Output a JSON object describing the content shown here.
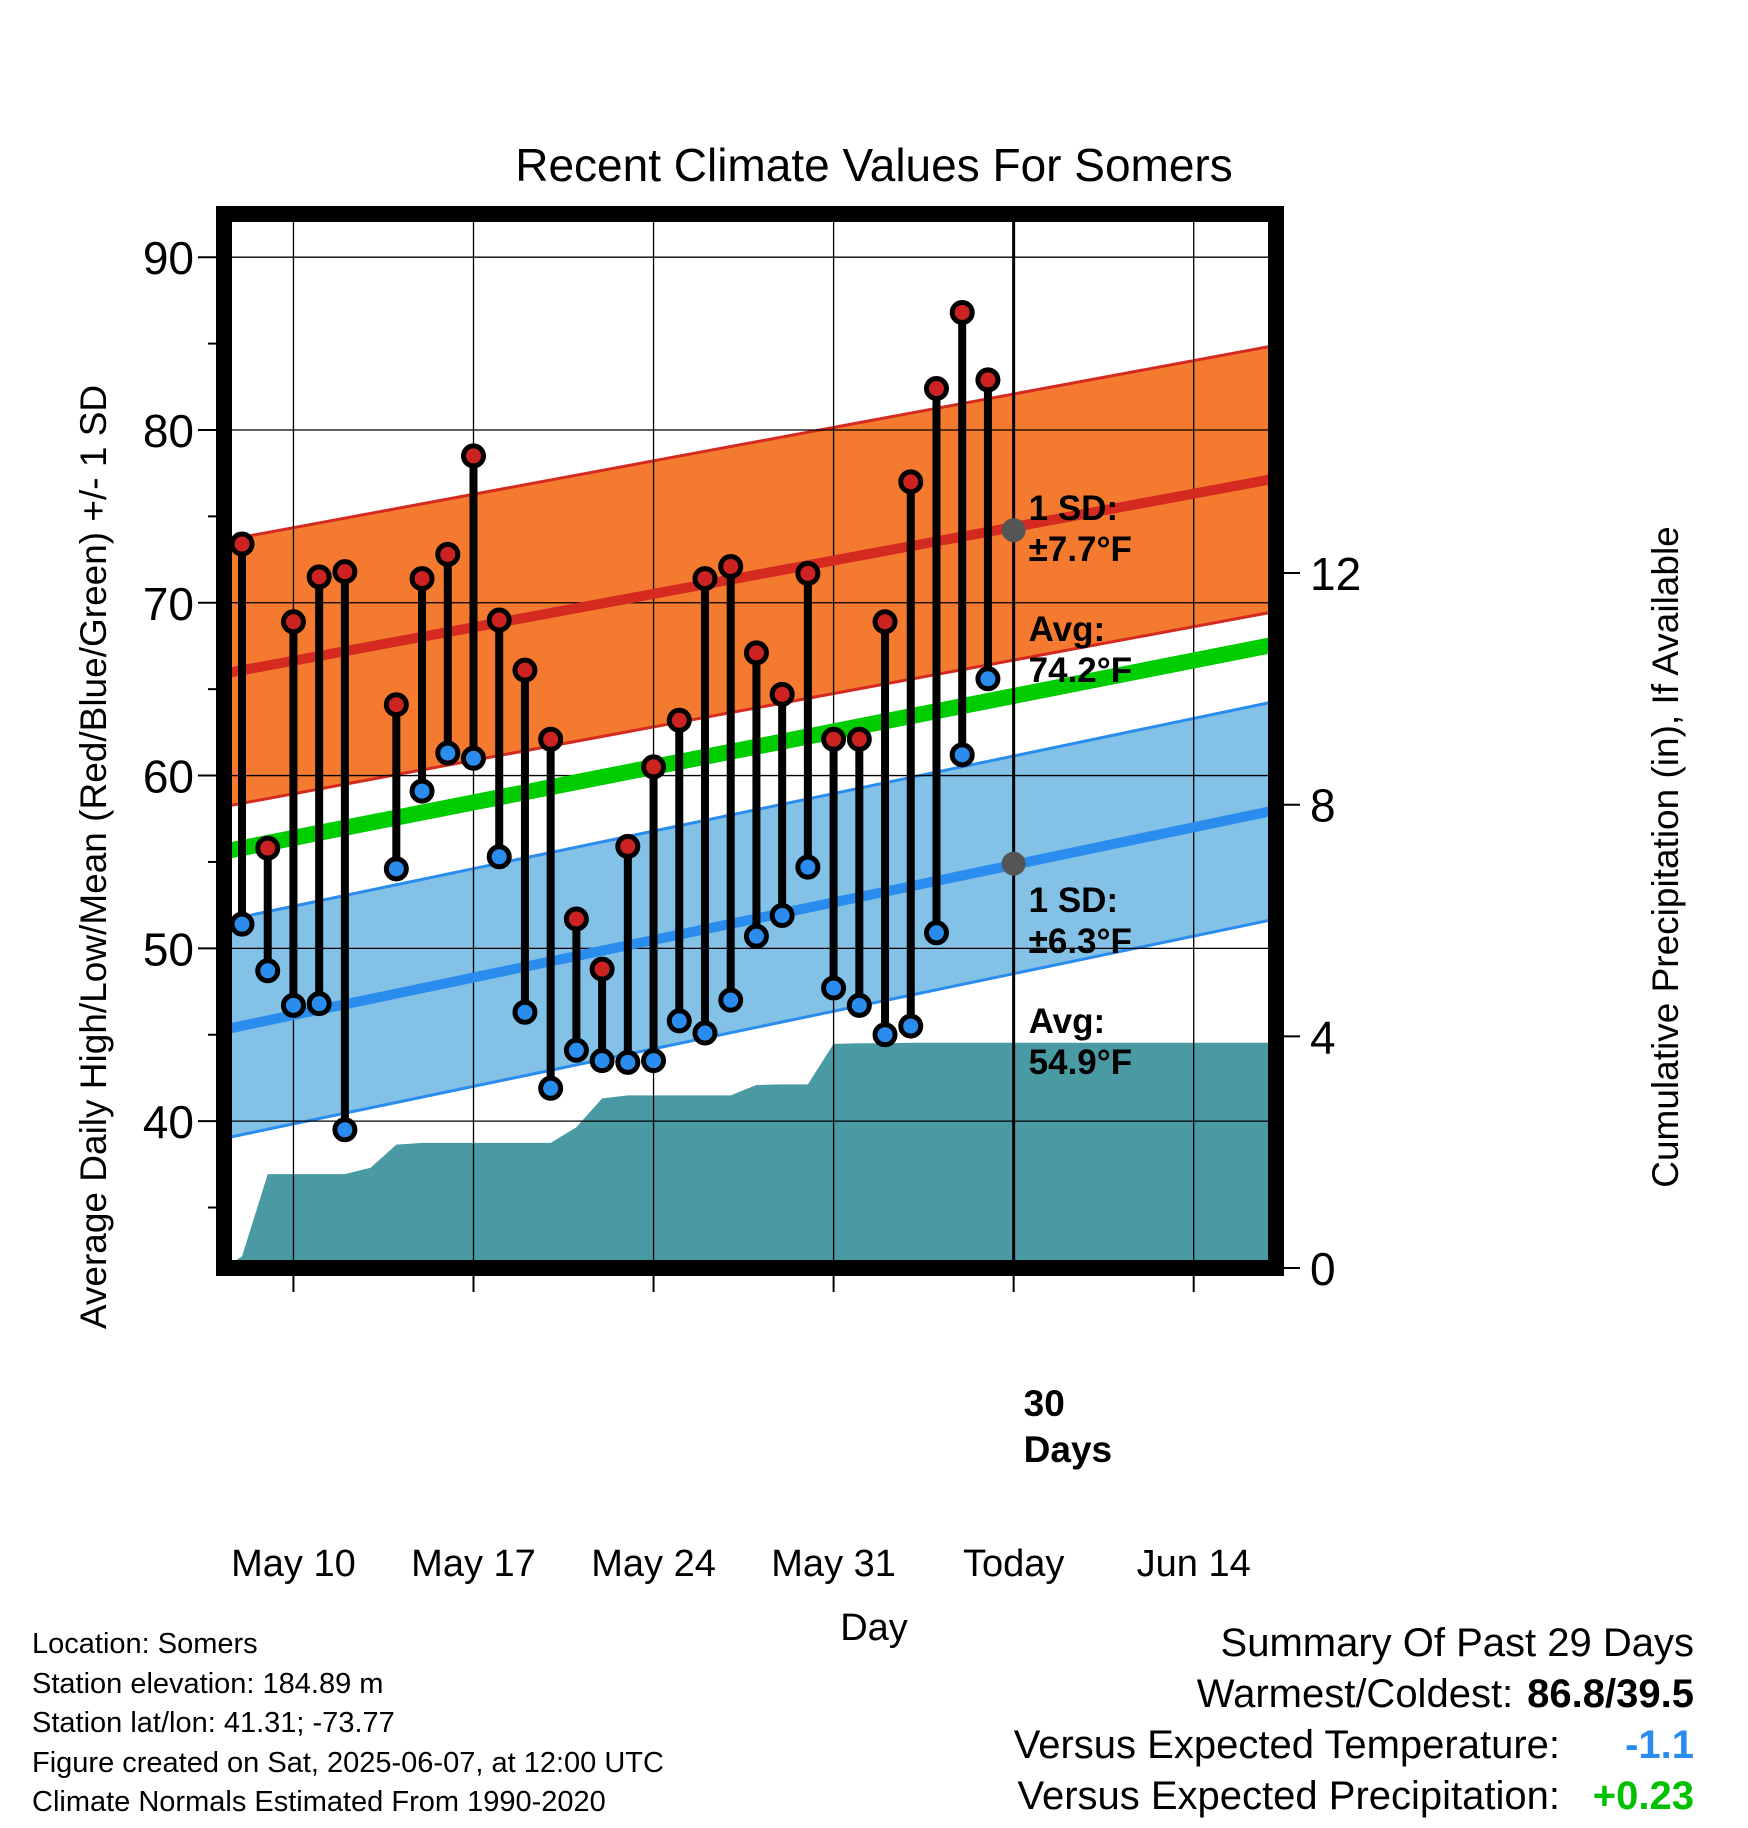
{
  "chart_data": {
    "type": "line",
    "title": "Recent Climate Values For Somers",
    "xlabel": "Day",
    "ylabel_left": "Average Daily High/Low/Mean (Red/Blue/Green) +/- 1 SD",
    "ylabel_right": "Cumulative Precipitation (in), If Available",
    "x_tick_labels": [
      "May 10",
      "May 17",
      "May 24",
      "May 31",
      "Today",
      "Jun 14"
    ],
    "x_tick_days": [
      0,
      7,
      14,
      21,
      28,
      35
    ],
    "x_range_days": [
      -2.7,
      38.2
    ],
    "today_day": 28,
    "y_left_range": [
      31.5,
      92.5
    ],
    "y_left_ticks": [
      40,
      50,
      60,
      70,
      80,
      90
    ],
    "y_right_range": [
      0,
      18.2
    ],
    "y_right_ticks": [
      0,
      4,
      8,
      12
    ],
    "grid": true,
    "normals": {
      "high_avg": [
        65.9,
        77.2
      ],
      "high_sd": 7.7,
      "low_avg": [
        45.3,
        58.0
      ],
      "low_sd": 6.3,
      "mean_avg": [
        55.6,
        67.6
      ],
      "x_days": [
        -2.7,
        38.2
      ]
    },
    "observations": {
      "x_days": [
        -2,
        -1,
        0,
        1,
        2,
        4,
        5,
        6,
        7,
        8,
        9,
        10,
        11,
        12,
        13,
        14,
        15,
        16,
        17,
        18,
        19,
        20,
        21,
        22,
        23,
        24,
        25,
        26,
        27
      ],
      "high": [
        73.4,
        55.8,
        68.9,
        71.5,
        71.8,
        64.1,
        71.4,
        72.8,
        78.5,
        69.0,
        66.1,
        62.1,
        51.7,
        48.8,
        55.9,
        60.5,
        63.2,
        71.4,
        72.1,
        67.1,
        64.7,
        71.7,
        62.1,
        62.1,
        68.9,
        77.0,
        82.4,
        86.8,
        82.9
      ],
      "low": [
        51.4,
        48.7,
        46.7,
        46.8,
        39.5,
        54.6,
        59.1,
        61.3,
        61.0,
        55.3,
        46.3,
        41.9,
        44.1,
        43.5,
        43.4,
        43.5,
        45.8,
        45.1,
        47.0,
        50.7,
        51.9,
        54.7,
        47.7,
        46.7,
        45.0,
        45.5,
        50.9,
        61.2,
        65.6
      ]
    },
    "precipitation": {
      "x_days": [
        -2.7,
        -2,
        -1,
        0,
        1,
        2,
        3,
        4,
        5,
        6,
        7,
        8,
        9,
        10,
        11,
        12,
        13,
        14,
        15,
        16,
        17,
        18,
        19,
        20,
        21,
        22,
        23,
        24,
        25,
        26,
        27,
        28,
        38.2
      ],
      "cumulative": [
        0.0,
        0.2,
        1.62,
        1.62,
        1.62,
        1.62,
        1.73,
        2.13,
        2.16,
        2.16,
        2.16,
        2.16,
        2.16,
        2.16,
        2.43,
        2.93,
        2.98,
        2.98,
        2.98,
        2.98,
        2.98,
        3.16,
        3.17,
        3.17,
        3.87,
        3.88,
        3.88,
        3.89,
        3.89,
        3.89,
        3.89,
        3.89,
        3.89
      ]
    },
    "annotations": {
      "high_sd_label": [
        "1 SD:",
        "±7.7°F"
      ],
      "high_avg_label": [
        "Avg:",
        "74.2°F"
      ],
      "low_sd_label": [
        "1 SD:",
        "±6.3°F"
      ],
      "low_avg_label": [
        "Avg:",
        "54.9°F"
      ],
      "days_label": [
        "30",
        "Days"
      ],
      "today_high_avg": 74.2,
      "today_low_avg": 54.9
    },
    "colors": {
      "high_band": "#f47a30",
      "high_line": "#d42a20",
      "low_band": "#83c1e6",
      "low_line": "#2a8dee",
      "mean_line": "#00cd00",
      "precip": "#4a9aa3",
      "high_marker": "#cc2222",
      "low_marker": "#2a8dee",
      "annotation": "#555555"
    }
  },
  "info": {
    "location": "Location: Somers",
    "elevation": "Station elevation: 184.89 m",
    "latlon": "Station lat/lon: 41.31; -73.77",
    "created": "Figure created on Sat, 2025-06-07, at 12:00 UTC",
    "normals": "Climate Normals Estimated From 1990-2020"
  },
  "summary": {
    "title": "Summary Of Past 29 Days",
    "warmest_label": "Warmest/Coldest:",
    "warmest_value": "86.8/39.5",
    "temp_label": "Versus Expected Temperature:",
    "temp_value": "-1.1",
    "temp_color": "#2a8dee",
    "precip_label": "Versus Expected Precipitation:",
    "precip_value": "+0.23",
    "precip_color": "#00c000"
  }
}
